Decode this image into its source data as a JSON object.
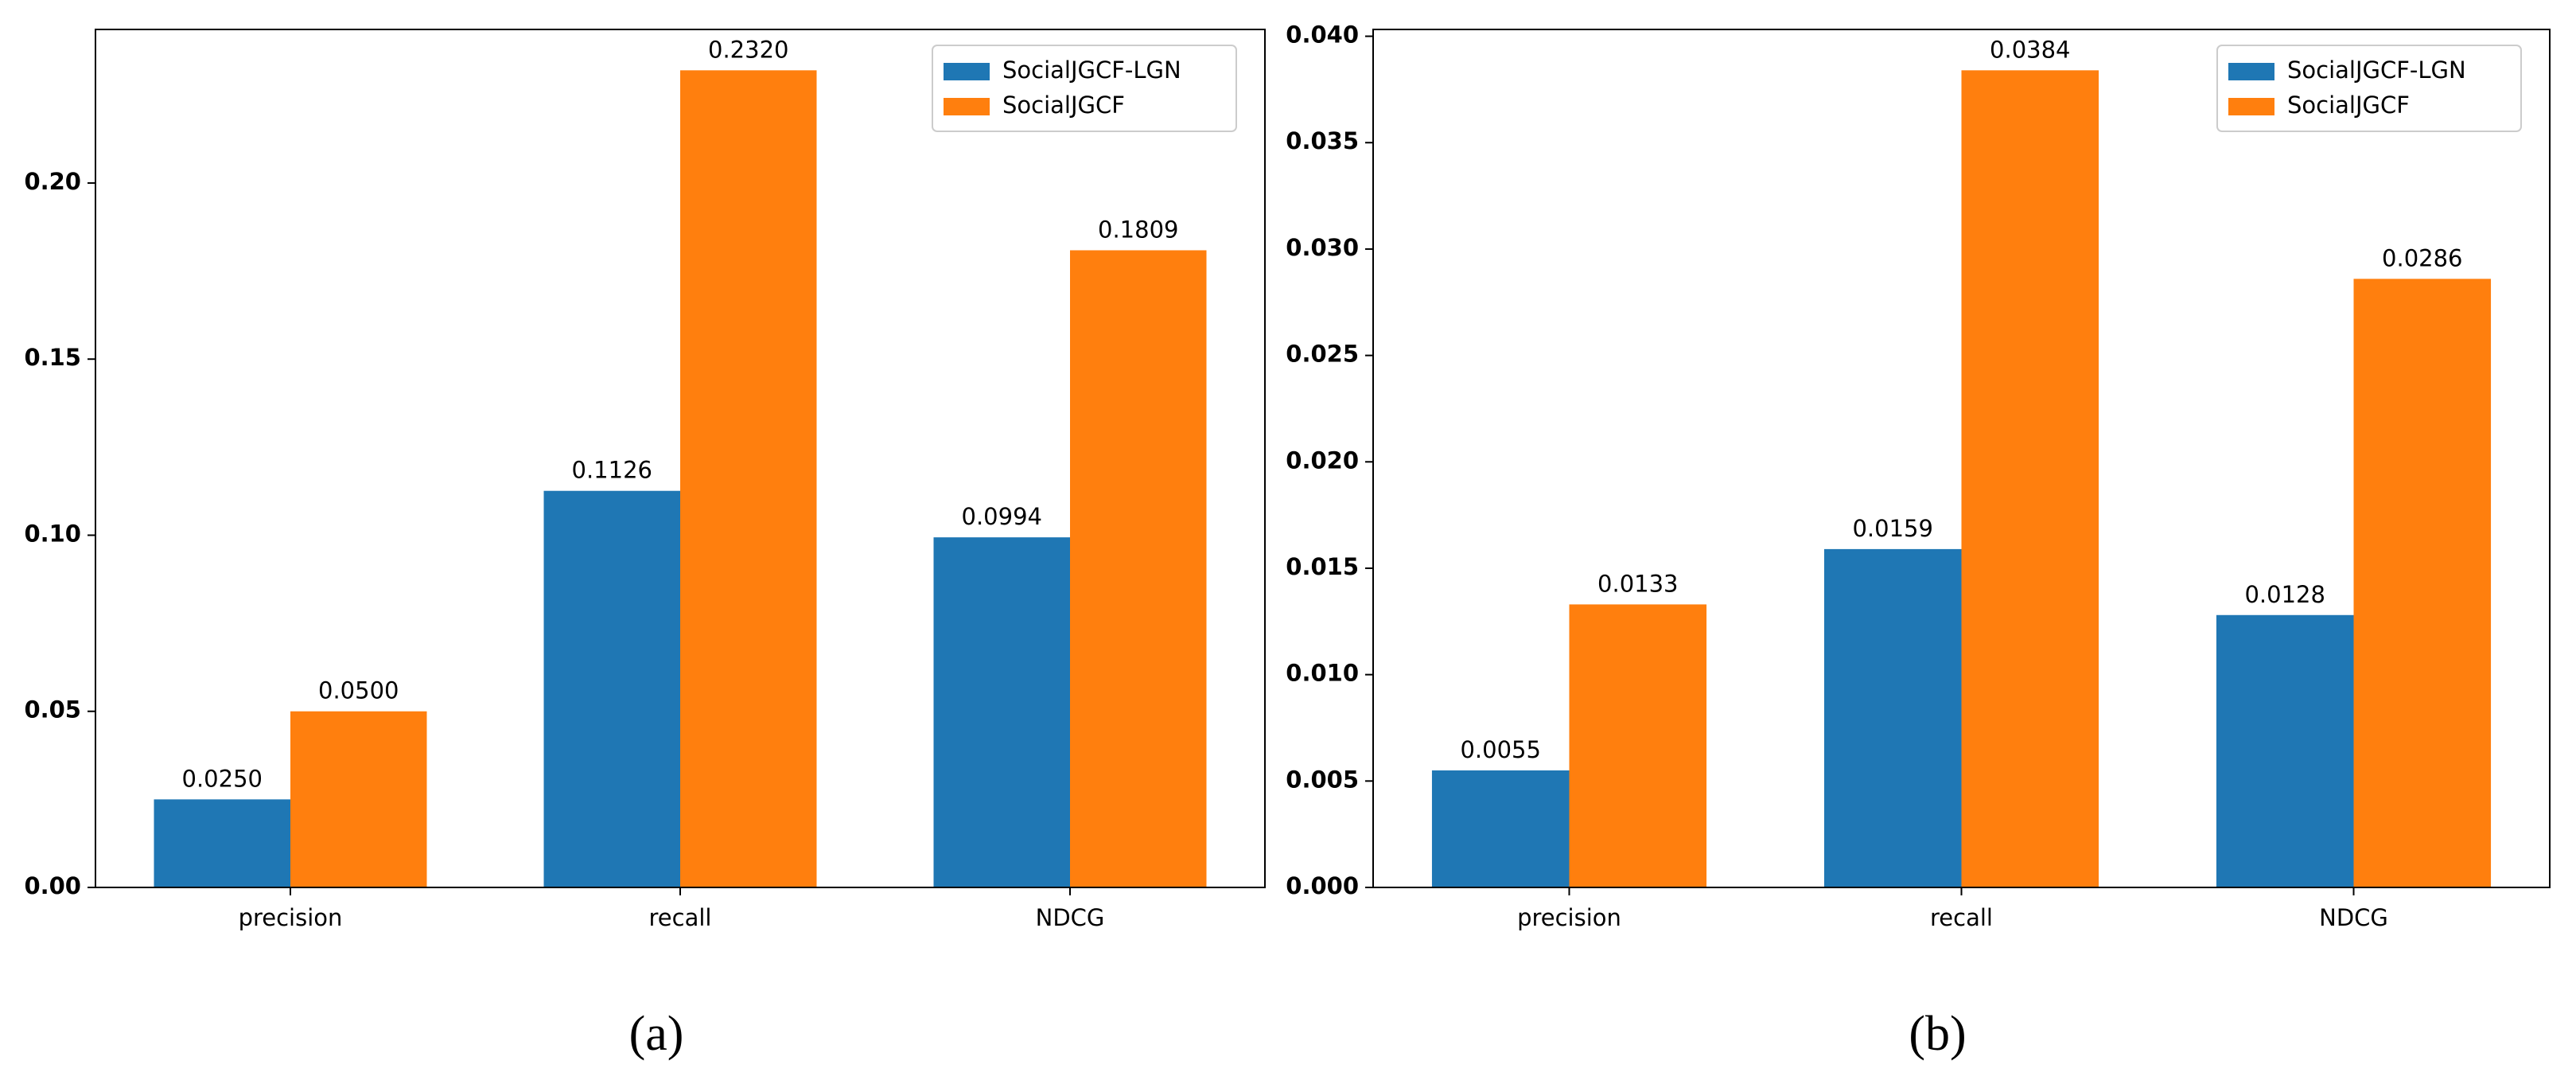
{
  "chart_data": [
    {
      "type": "bar",
      "caption": "(a)",
      "categories": [
        "precision",
        "recall",
        "NDCG"
      ],
      "series": [
        {
          "name": "SocialJGCF-LGN",
          "color": "#1f77b4",
          "values": [
            0.025,
            0.1126,
            0.0994
          ],
          "value_labels": [
            "0.0250",
            "0.1126",
            "0.0994"
          ]
        },
        {
          "name": "SocialJGCF",
          "color": "#ff7f0e",
          "values": [
            0.05,
            0.232,
            0.1809
          ],
          "value_labels": [
            "0.0500",
            "0.2320",
            "0.1809"
          ]
        }
      ],
      "ylim": [
        0,
        0.2436
      ],
      "yticks": [
        {
          "value": 0,
          "label": "0.00"
        },
        0.05,
        {
          "value": 0.1,
          "label": "0.10"
        },
        0.15,
        {
          "value": 0.2,
          "label": "0.20"
        }
      ],
      "legend": "upper right"
    },
    {
      "type": "bar",
      "caption": "(b)",
      "categories": [
        "precision",
        "recall",
        "NDCG"
      ],
      "series": [
        {
          "name": "SocialJGCF-LGN",
          "color": "#1f77b4",
          "values": [
            0.0055,
            0.0159,
            0.0128
          ],
          "value_labels": [
            "0.0055",
            "0.0159",
            "0.0128"
          ]
        },
        {
          "name": "SocialJGCF",
          "color": "#ff7f0e",
          "values": [
            0.0133,
            0.0384,
            0.0286
          ],
          "value_labels": [
            "0.0133",
            "0.0384",
            "0.0286"
          ]
        }
      ],
      "ylim": [
        0,
        0.04032
      ],
      "yticks": [
        {
          "value": 0,
          "label": "0.000"
        },
        0.005,
        {
          "value": 0.01,
          "label": "0.010"
        },
        0.015,
        {
          "value": 0.02,
          "label": "0.020"
        },
        0.025,
        {
          "value": 0.03,
          "label": "0.030"
        },
        0.035,
        {
          "value": 0.04,
          "label": "0.040"
        }
      ],
      "legend": "upper right"
    }
  ]
}
